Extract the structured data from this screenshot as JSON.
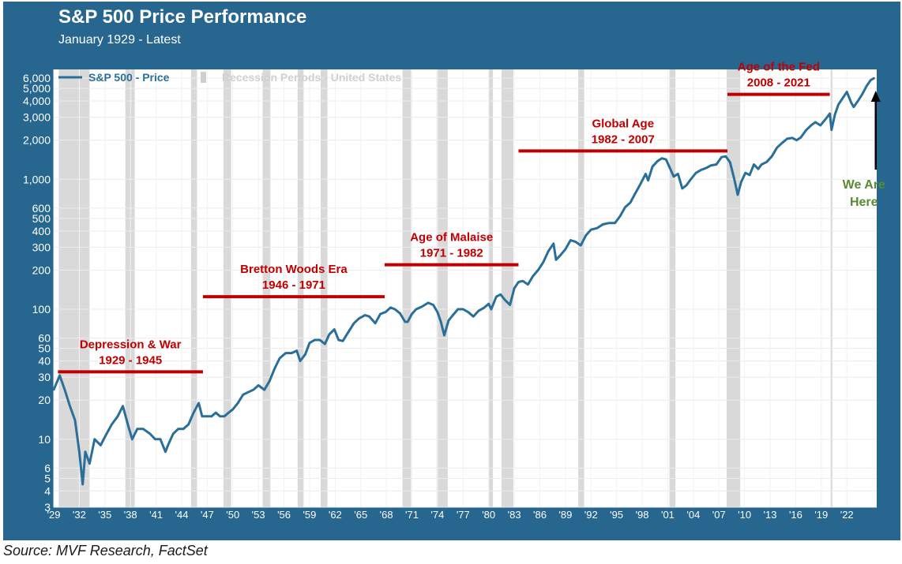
{
  "chart_data": {
    "type": "line",
    "title": "S&P 500 Price Performance",
    "subtitle": "January 1929 - Latest",
    "y_scale": "log",
    "ylim": [
      3,
      7000
    ],
    "xlim": [
      1929.0,
      2025.5
    ],
    "y_ticks": [
      {
        "value": 3,
        "label": "3"
      },
      {
        "value": 4,
        "label": "4"
      },
      {
        "value": 5,
        "label": "5"
      },
      {
        "value": 6,
        "label": "6"
      },
      {
        "value": 10,
        "label": "10"
      },
      {
        "value": 20,
        "label": "20"
      },
      {
        "value": 30,
        "label": "30"
      },
      {
        "value": 40,
        "label": "40"
      },
      {
        "value": 50,
        "label": "50"
      },
      {
        "value": 60,
        "label": "60"
      },
      {
        "value": 100,
        "label": "100"
      },
      {
        "value": 200,
        "label": "200"
      },
      {
        "value": 300,
        "label": "300"
      },
      {
        "value": 400,
        "label": "400"
      },
      {
        "value": 500,
        "label": "500"
      },
      {
        "value": 600,
        "label": "600"
      },
      {
        "value": 1000,
        "label": "1,000"
      },
      {
        "value": 2000,
        "label": "2,000"
      },
      {
        "value": 3000,
        "label": "3,000"
      },
      {
        "value": 4000,
        "label": "4,000"
      },
      {
        "value": 5000,
        "label": "5,000"
      },
      {
        "value": 6000,
        "label": "6,000"
      }
    ],
    "x_ticks": [
      {
        "year": 1929,
        "label": "'29"
      },
      {
        "year": 1932,
        "label": "'32"
      },
      {
        "year": 1935,
        "label": "'35"
      },
      {
        "year": 1938,
        "label": "'38"
      },
      {
        "year": 1941,
        "label": "'41"
      },
      {
        "year": 1944,
        "label": "'44"
      },
      {
        "year": 1947,
        "label": "'47"
      },
      {
        "year": 1950,
        "label": "'50"
      },
      {
        "year": 1953,
        "label": "'53"
      },
      {
        "year": 1956,
        "label": "'56"
      },
      {
        "year": 1959,
        "label": "'59"
      },
      {
        "year": 1962,
        "label": "'62"
      },
      {
        "year": 1965,
        "label": "'65"
      },
      {
        "year": 1968,
        "label": "'68"
      },
      {
        "year": 1971,
        "label": "'71"
      },
      {
        "year": 1974,
        "label": "'74"
      },
      {
        "year": 1977,
        "label": "'77"
      },
      {
        "year": 1980,
        "label": "'80"
      },
      {
        "year": 1983,
        "label": "'83"
      },
      {
        "year": 1986,
        "label": "'86"
      },
      {
        "year": 1989,
        "label": "'89"
      },
      {
        "year": 1992,
        "label": "'92"
      },
      {
        "year": 1995,
        "label": "'95"
      },
      {
        "year": 1998,
        "label": "'98"
      },
      {
        "year": 2001,
        "label": "'01"
      },
      {
        "year": 2004,
        "label": "'04"
      },
      {
        "year": 2007,
        "label": "'07"
      },
      {
        "year": 2010,
        "label": "'10"
      },
      {
        "year": 2013,
        "label": "'13"
      },
      {
        "year": 2016,
        "label": "'16"
      },
      {
        "year": 2019,
        "label": "'19"
      },
      {
        "year": 2022,
        "label": "'22"
      }
    ],
    "legend": [
      {
        "label": "S&P 500 - Price",
        "color": "#2a6f97",
        "kind": "line"
      },
      {
        "label": "Recession Periods - United States",
        "color": "#d9d9d9",
        "kind": "band"
      }
    ],
    "recessions": [
      [
        1929.6,
        1933.2
      ],
      [
        1937.4,
        1938.5
      ],
      [
        1945.1,
        1945.8
      ],
      [
        1948.9,
        1949.8
      ],
      [
        1953.5,
        1954.4
      ],
      [
        1957.6,
        1958.3
      ],
      [
        1960.3,
        1961.1
      ],
      [
        1969.9,
        1970.9
      ],
      [
        1973.9,
        1975.2
      ],
      [
        1980.0,
        1980.5
      ],
      [
        1981.5,
        1982.9
      ],
      [
        1990.5,
        1991.2
      ],
      [
        2001.2,
        2001.9
      ],
      [
        2007.9,
        2009.5
      ],
      [
        2020.1,
        2020.3
      ]
    ],
    "series": [
      {
        "name": "S&P 500 - Price",
        "color": "#2a6f97",
        "x": [
          1929.0,
          1929.7,
          1930.3,
          1930.9,
          1931.5,
          1932.0,
          1932.4,
          1932.7,
          1933.2,
          1933.8,
          1934.5,
          1935.2,
          1935.8,
          1936.5,
          1937.1,
          1937.7,
          1938.2,
          1938.8,
          1939.5,
          1940.3,
          1940.9,
          1941.5,
          1942.1,
          1942.4,
          1943.0,
          1943.6,
          1944.2,
          1944.8,
          1945.4,
          1946.0,
          1946.4,
          1946.9,
          1947.5,
          1948.0,
          1948.5,
          1949.0,
          1949.5,
          1950.0,
          1950.6,
          1951.2,
          1951.8,
          1952.4,
          1953.0,
          1953.7,
          1954.3,
          1954.9,
          1955.5,
          1956.2,
          1956.9,
          1957.5,
          1957.9,
          1958.5,
          1959.0,
          1959.6,
          1960.2,
          1960.8,
          1961.3,
          1961.9,
          1962.4,
          1962.9,
          1963.5,
          1964.2,
          1964.8,
          1965.5,
          1966.0,
          1966.7,
          1967.3,
          1967.9,
          1968.5,
          1969.0,
          1969.6,
          1970.2,
          1970.5,
          1971.0,
          1971.5,
          1972.2,
          1972.9,
          1973.5,
          1974.0,
          1974.4,
          1974.8,
          1975.3,
          1975.8,
          1976.4,
          1977.0,
          1977.6,
          1978.2,
          1978.8,
          1979.4,
          1980.0,
          1980.3,
          1980.9,
          1981.4,
          1981.9,
          1982.5,
          1983.0,
          1983.5,
          1984.0,
          1984.6,
          1985.2,
          1985.8,
          1986.4,
          1987.0,
          1987.6,
          1987.9,
          1988.4,
          1989.0,
          1989.6,
          1990.2,
          1990.8,
          1991.4,
          1992.0,
          1992.7,
          1993.4,
          1994.1,
          1994.8,
          1995.4,
          1996.0,
          1996.6,
          1997.2,
          1997.8,
          1998.4,
          1998.7,
          1999.2,
          1999.8,
          2000.3,
          2000.8,
          2001.3,
          2001.7,
          2002.2,
          2002.7,
          2003.2,
          2003.7,
          2004.3,
          2004.9,
          2005.5,
          2006.1,
          2006.7,
          2007.3,
          2007.8,
          2008.3,
          2008.8,
          2009.2,
          2009.6,
          2010.1,
          2010.6,
          2011.1,
          2011.6,
          2012.0,
          2012.6,
          2013.2,
          2013.8,
          2014.4,
          2015.0,
          2015.6,
          2016.1,
          2016.6,
          2017.2,
          2017.8,
          2018.3,
          2018.9,
          2019.5,
          2020.0,
          2020.2,
          2020.6,
          2021.0,
          2021.5,
          2022.0,
          2022.5,
          2022.8,
          2023.3,
          2023.8,
          2024.3,
          2024.8,
          2025.2
        ],
        "values": [
          24,
          31,
          24,
          18,
          14,
          8,
          4.5,
          8,
          6.5,
          10,
          9,
          11,
          13,
          15,
          18,
          13,
          10,
          12,
          12,
          11,
          10,
          10,
          8,
          9,
          11,
          12,
          12,
          13,
          16,
          19,
          15,
          15,
          15,
          16,
          15,
          15,
          16,
          17,
          19,
          22,
          23,
          24,
          26,
          24,
          28,
          35,
          42,
          46,
          46,
          48,
          40,
          45,
          55,
          58,
          58,
          54,
          64,
          70,
          58,
          57,
          66,
          78,
          85,
          90,
          88,
          78,
          92,
          95,
          103,
          100,
          93,
          80,
          80,
          92,
          100,
          105,
          112,
          108,
          95,
          80,
          63,
          82,
          90,
          100,
          100,
          95,
          88,
          97,
          102,
          110,
          100,
          125,
          130,
          118,
          108,
          145,
          162,
          165,
          155,
          180,
          200,
          230,
          280,
          320,
          240,
          260,
          290,
          340,
          330,
          310,
          370,
          410,
          420,
          450,
          460,
          460,
          520,
          610,
          660,
          780,
          920,
          1100,
          980,
          1250,
          1380,
          1450,
          1420,
          1200,
          1050,
          1100,
          850,
          900,
          1000,
          1120,
          1180,
          1220,
          1280,
          1300,
          1480,
          1500,
          1350,
          1000,
          760,
          950,
          1120,
          1080,
          1300,
          1200,
          1300,
          1360,
          1500,
          1750,
          1900,
          2050,
          2080,
          2000,
          2100,
          2380,
          2600,
          2750,
          2600,
          2900,
          3200,
          2400,
          3150,
          3750,
          4200,
          4700,
          3900,
          3600,
          4000,
          4500,
          5200,
          5800,
          6000
        ]
      }
    ],
    "eras": [
      {
        "line1": "Depression & War",
        "line2": "1929 - 1945",
        "start": 1929.5,
        "end": 1946.5,
        "level": 33
      },
      {
        "line1": "Bretton Woods Era",
        "line2": "1946 - 1971",
        "start": 1946.5,
        "end": 1967.8,
        "level": 125
      },
      {
        "line1": "Age of Malaise",
        "line2": "1971 - 1982",
        "start": 1967.8,
        "end": 1983.5,
        "level": 220
      },
      {
        "line1": "Global Age",
        "line2": "1982 - 2007",
        "start": 1983.5,
        "end": 2008.0,
        "level": 1650
      },
      {
        "line1": "Age of the Fed",
        "line2": "2008 - 2021",
        "start": 2008.0,
        "end": 2020.0,
        "level": 4500
      }
    ],
    "annotation": {
      "line1": "We Are",
      "line2": "Here",
      "year": 2025.2,
      "color": "#5a8a32"
    }
  },
  "source": "Source: MVF Research, FactSet",
  "colors": {
    "frame": "#26668f",
    "plot_bg": "#ffffff",
    "line": "#2a6f97",
    "era": "#c00000",
    "band": "#d9d9d9"
  }
}
